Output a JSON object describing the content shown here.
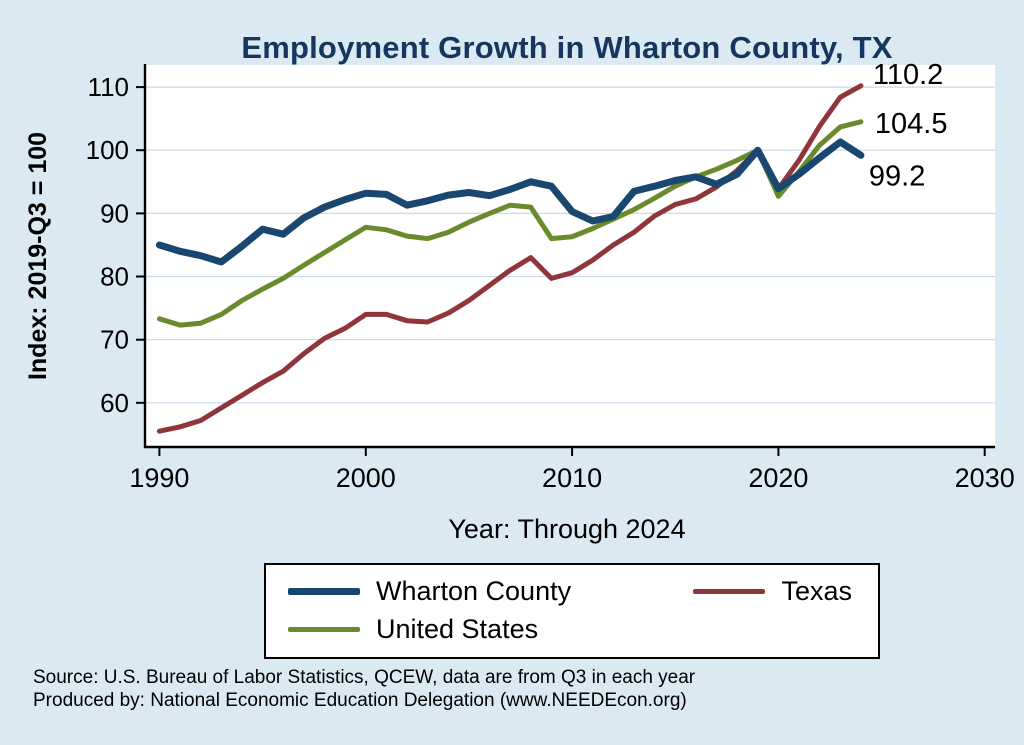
{
  "chart": {
    "title": "Employment Growth in Wharton County, TX",
    "x_axis_title": "Year: Through 2024",
    "y_axis_title": "Index: 2019-Q3 = 100",
    "source_line1": "Source: U.S. Bureau of Labor Statistics, QCEW, data are from Q3 in each year",
    "source_line2": "Produced by: National Economic Education Delegation (www.NEEDEcon.org)"
  },
  "legend": {
    "items": [
      {
        "label": "Wharton  County"
      },
      {
        "label": "Texas"
      },
      {
        "label": "United States"
      }
    ]
  },
  "chart_data": {
    "type": "line",
    "title": "Employment Growth in Wharton County, TX",
    "xlabel": "Year: Through 2024",
    "ylabel": "Index: 2019-Q3 = 100",
    "xlim": [
      1989.3,
      2030.5
    ],
    "ylim": [
      53,
      113.5
    ],
    "xticks": [
      1990,
      2000,
      2010,
      2020,
      2030
    ],
    "yticks": [
      60,
      70,
      80,
      90,
      100,
      110
    ],
    "grid": true,
    "legend_position": "bottom",
    "x": [
      1990,
      1991,
      1992,
      1993,
      1994,
      1995,
      1996,
      1997,
      1998,
      1999,
      2000,
      2001,
      2002,
      2003,
      2004,
      2005,
      2006,
      2007,
      2008,
      2009,
      2010,
      2011,
      2012,
      2013,
      2014,
      2015,
      2016,
      2017,
      2018,
      2019,
      2020,
      2021,
      2022,
      2023,
      2024
    ],
    "series": [
      {
        "id": "wharton-county",
        "name": "Wharton County",
        "color": "#1a476f",
        "line_width": 7,
        "end_label": "99.2",
        "end_label_offset": [
          8,
          30
        ],
        "values": [
          85.0,
          84.0,
          83.3,
          82.3,
          84.8,
          87.5,
          86.7,
          89.3,
          91.0,
          92.2,
          93.2,
          93.0,
          91.3,
          92.0,
          92.9,
          93.3,
          92.8,
          93.8,
          95.0,
          94.3,
          90.3,
          88.8,
          89.5,
          93.5,
          94.3,
          95.2,
          95.8,
          94.6,
          96.2,
          100.0,
          93.9,
          96.2,
          98.8,
          101.3,
          99.2
        ]
      },
      {
        "id": "texas",
        "name": "Texas",
        "color": "#90353b",
        "line_width": 5,
        "end_label": "110.2",
        "end_label_offset": [
          12,
          -2
        ],
        "values": [
          55.5,
          56.2,
          57.2,
          59.2,
          61.2,
          63.2,
          65.0,
          67.8,
          70.2,
          71.8,
          74.0,
          74.0,
          73.0,
          72.8,
          74.2,
          76.2,
          78.6,
          81.0,
          83.0,
          79.7,
          80.6,
          82.6,
          85.0,
          87.0,
          89.6,
          91.4,
          92.3,
          94.2,
          96.8,
          100.0,
          93.9,
          98.4,
          103.8,
          108.4,
          110.2
        ]
      },
      {
        "id": "united-states",
        "name": "United States",
        "color": "#6a8b2d",
        "line_width": 5,
        "end_label": "104.5",
        "end_label_offset": [
          14,
          11
        ],
        "values": [
          73.3,
          72.3,
          72.6,
          74.0,
          76.2,
          78.0,
          79.7,
          81.8,
          83.8,
          85.8,
          87.8,
          87.4,
          86.4,
          86.0,
          87.0,
          88.6,
          90.0,
          91.3,
          91.0,
          86.0,
          86.3,
          87.6,
          89.1,
          90.6,
          92.4,
          94.3,
          95.8,
          97.0,
          98.4,
          100.0,
          92.7,
          96.6,
          100.8,
          103.7,
          104.5
        ]
      }
    ],
    "colors": {
      "background": "#dbe9f3",
      "plot_background": "#ffffff",
      "gridline": "#c9daea",
      "title": "#17365d",
      "axis": "#000000"
    }
  }
}
